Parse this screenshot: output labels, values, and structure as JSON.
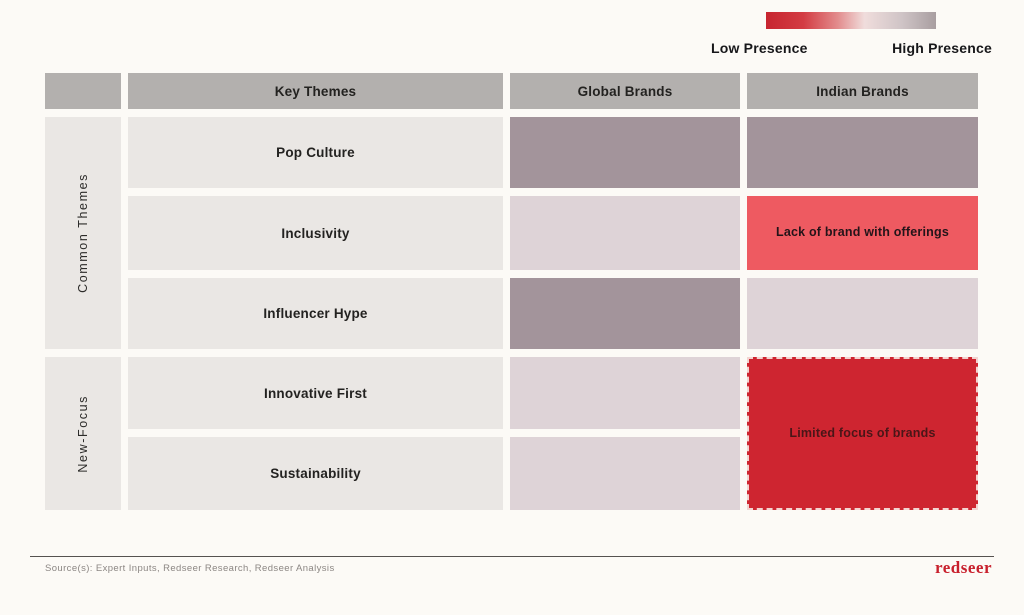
{
  "legend": {
    "low_label": "Low Presence",
    "high_label": "High Presence",
    "gradient_stops": [
      "#c72530 0%",
      "#d33c43 22%",
      "#e28b8c 42%",
      "#f0dddc 58%",
      "#cfc4c6 80%",
      "#a89ea0 100%"
    ]
  },
  "matrix": {
    "headers": {
      "themes": "Key Themes",
      "global": "Global Brands",
      "indian": "Indian Brands"
    },
    "groups": [
      {
        "label": "Common Themes"
      },
      {
        "label": "New-Focus"
      }
    ],
    "themes": [
      "Pop Culture",
      "Inclusivity",
      "Influencer Hype",
      "Innovative First",
      "Sustainability"
    ],
    "annotations": {
      "inclusivity_indian": "Lack of brand with offerings",
      "newfocus_indian": "Limited focus of brands"
    }
  },
  "colors": {
    "header_bg": "#b3b0ae",
    "label_bg": "#eae7e4",
    "presence_high": "#a3949b",
    "presence_medium": "#ded3d7",
    "presence_low": "#ee5a61",
    "presence_very_low": "#ce2530",
    "brand_red": "#c8202d"
  },
  "footer": {
    "source": "Source(s): Expert Inputs, Redseer Research, Redseer Analysis",
    "logo_text": "redseer"
  },
  "chart_data": {
    "type": "heatmap",
    "title": "",
    "legend": {
      "low": "Low Presence",
      "high": "High Presence",
      "low_color": "#c72530",
      "high_color": "#a89ea0"
    },
    "columns": [
      "Global Brands",
      "Indian Brands"
    ],
    "row_groups": [
      {
        "group": "Common Themes",
        "rows": [
          "Pop Culture",
          "Inclusivity",
          "Influencer Hype"
        ]
      },
      {
        "group": "New-Focus",
        "rows": [
          "Innovative First",
          "Sustainability"
        ]
      }
    ],
    "cells": [
      {
        "row": "Pop Culture",
        "column": "Global Brands",
        "presence": "high",
        "color": "#a3949b",
        "label": ""
      },
      {
        "row": "Pop Culture",
        "column": "Indian Brands",
        "presence": "high",
        "color": "#a3949b",
        "label": ""
      },
      {
        "row": "Inclusivity",
        "column": "Global Brands",
        "presence": "medium-high",
        "color": "#ded3d7",
        "label": ""
      },
      {
        "row": "Inclusivity",
        "column": "Indian Brands",
        "presence": "low",
        "color": "#ee5a61",
        "label": "Lack of brand with offerings"
      },
      {
        "row": "Influencer Hype",
        "column": "Global Brands",
        "presence": "high",
        "color": "#a3949b",
        "label": ""
      },
      {
        "row": "Influencer Hype",
        "column": "Indian Brands",
        "presence": "medium-high",
        "color": "#ded3d7",
        "label": ""
      },
      {
        "row": "Innovative First",
        "column": "Global Brands",
        "presence": "medium-high",
        "color": "#ded3d7",
        "label": ""
      },
      {
        "row": "Sustainability",
        "column": "Global Brands",
        "presence": "medium-high",
        "color": "#ded3d7",
        "label": ""
      },
      {
        "row": "Innovative First / Sustainability (merged)",
        "column": "Indian Brands",
        "presence": "very-low",
        "color": "#ce2530",
        "label": "Limited focus of brands",
        "merged_rows": 2
      }
    ]
  }
}
